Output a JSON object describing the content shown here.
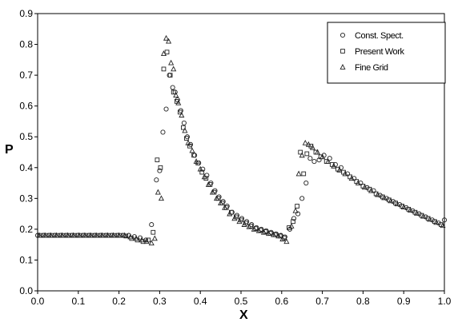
{
  "chart_data": {
    "type": "scatter",
    "title": "",
    "xlabel": "X",
    "ylabel": "P",
    "xlim": [
      0.0,
      1.0
    ],
    "ylim": [
      0.0,
      0.9
    ],
    "x_ticks": [
      "0.0",
      "0.1",
      "0.2",
      "0.3",
      "0.4",
      "0.5",
      "0.6",
      "0.7",
      "0.8",
      "0.9",
      "1.0"
    ],
    "y_ticks": [
      "0.0",
      "0.1",
      "0.2",
      "0.3",
      "0.4",
      "0.5",
      "0.6",
      "0.7",
      "0.8",
      "0.9"
    ],
    "grid": false,
    "legend_position": "top-right",
    "series": [
      {
        "name": "Const. Spect.",
        "marker": "circle",
        "points": [
          [
            0.0,
            0.18
          ],
          [
            0.014,
            0.18
          ],
          [
            0.028,
            0.18
          ],
          [
            0.042,
            0.18
          ],
          [
            0.056,
            0.18
          ],
          [
            0.07,
            0.18
          ],
          [
            0.084,
            0.18
          ],
          [
            0.098,
            0.18
          ],
          [
            0.112,
            0.18
          ],
          [
            0.126,
            0.18
          ],
          [
            0.14,
            0.18
          ],
          [
            0.154,
            0.18
          ],
          [
            0.168,
            0.18
          ],
          [
            0.182,
            0.18
          ],
          [
            0.196,
            0.18
          ],
          [
            0.21,
            0.18
          ],
          [
            0.224,
            0.18
          ],
          [
            0.238,
            0.176
          ],
          [
            0.252,
            0.172
          ],
          [
            0.266,
            0.165
          ],
          [
            0.28,
            0.215
          ],
          [
            0.292,
            0.36
          ],
          [
            0.3,
            0.39
          ],
          [
            0.308,
            0.515
          ],
          [
            0.316,
            0.59
          ],
          [
            0.324,
            0.7
          ],
          [
            0.332,
            0.66
          ],
          [
            0.338,
            0.645
          ],
          [
            0.344,
            0.62
          ],
          [
            0.352,
            0.585
          ],
          [
            0.36,
            0.545
          ],
          [
            0.368,
            0.5
          ],
          [
            0.376,
            0.475
          ],
          [
            0.386,
            0.44
          ],
          [
            0.396,
            0.415
          ],
          [
            0.406,
            0.395
          ],
          [
            0.416,
            0.375
          ],
          [
            0.426,
            0.35
          ],
          [
            0.436,
            0.325
          ],
          [
            0.446,
            0.305
          ],
          [
            0.456,
            0.29
          ],
          [
            0.466,
            0.275
          ],
          [
            0.478,
            0.255
          ],
          [
            0.49,
            0.245
          ],
          [
            0.502,
            0.235
          ],
          [
            0.514,
            0.225
          ],
          [
            0.526,
            0.215
          ],
          [
            0.538,
            0.205
          ],
          [
            0.55,
            0.2
          ],
          [
            0.562,
            0.195
          ],
          [
            0.574,
            0.19
          ],
          [
            0.586,
            0.185
          ],
          [
            0.598,
            0.18
          ],
          [
            0.608,
            0.175
          ],
          [
            0.62,
            0.2
          ],
          [
            0.63,
            0.235
          ],
          [
            0.64,
            0.25
          ],
          [
            0.65,
            0.3
          ],
          [
            0.66,
            0.35
          ],
          [
            0.67,
            0.43
          ],
          [
            0.68,
            0.42
          ],
          [
            0.692,
            0.425
          ],
          [
            0.704,
            0.44
          ],
          [
            0.718,
            0.43
          ],
          [
            0.732,
            0.41
          ],
          [
            0.746,
            0.4
          ],
          [
            0.762,
            0.38
          ],
          [
            0.778,
            0.365
          ],
          [
            0.794,
            0.35
          ],
          [
            0.81,
            0.335
          ],
          [
            0.826,
            0.325
          ],
          [
            0.842,
            0.31
          ],
          [
            0.858,
            0.3
          ],
          [
            0.874,
            0.29
          ],
          [
            0.89,
            0.28
          ],
          [
            0.906,
            0.27
          ],
          [
            0.922,
            0.26
          ],
          [
            0.938,
            0.25
          ],
          [
            0.954,
            0.24
          ],
          [
            0.97,
            0.23
          ],
          [
            0.986,
            0.22
          ],
          [
            1.0,
            0.23
          ]
        ]
      },
      {
        "name": "Present Work",
        "marker": "square",
        "points": [
          [
            0.007,
            0.18
          ],
          [
            0.021,
            0.18
          ],
          [
            0.035,
            0.18
          ],
          [
            0.049,
            0.18
          ],
          [
            0.063,
            0.18
          ],
          [
            0.077,
            0.18
          ],
          [
            0.091,
            0.18
          ],
          [
            0.105,
            0.18
          ],
          [
            0.119,
            0.18
          ],
          [
            0.133,
            0.18
          ],
          [
            0.147,
            0.18
          ],
          [
            0.161,
            0.18
          ],
          [
            0.175,
            0.18
          ],
          [
            0.189,
            0.18
          ],
          [
            0.203,
            0.18
          ],
          [
            0.217,
            0.178
          ],
          [
            0.231,
            0.17
          ],
          [
            0.245,
            0.165
          ],
          [
            0.259,
            0.16
          ],
          [
            0.272,
            0.165
          ],
          [
            0.284,
            0.19
          ],
          [
            0.294,
            0.425
          ],
          [
            0.302,
            0.4
          ],
          [
            0.31,
            0.72
          ],
          [
            0.318,
            0.775
          ],
          [
            0.326,
            0.7
          ],
          [
            0.334,
            0.645
          ],
          [
            0.342,
            0.615
          ],
          [
            0.35,
            0.58
          ],
          [
            0.358,
            0.53
          ],
          [
            0.366,
            0.495
          ],
          [
            0.374,
            0.47
          ],
          [
            0.384,
            0.44
          ],
          [
            0.394,
            0.415
          ],
          [
            0.404,
            0.385
          ],
          [
            0.414,
            0.365
          ],
          [
            0.424,
            0.345
          ],
          [
            0.434,
            0.32
          ],
          [
            0.444,
            0.3
          ],
          [
            0.454,
            0.285
          ],
          [
            0.464,
            0.27
          ],
          [
            0.476,
            0.255
          ],
          [
            0.488,
            0.24
          ],
          [
            0.5,
            0.23
          ],
          [
            0.512,
            0.22
          ],
          [
            0.524,
            0.21
          ],
          [
            0.536,
            0.202
          ],
          [
            0.548,
            0.197
          ],
          [
            0.56,
            0.192
          ],
          [
            0.572,
            0.187
          ],
          [
            0.584,
            0.182
          ],
          [
            0.596,
            0.178
          ],
          [
            0.606,
            0.172
          ],
          [
            0.618,
            0.205
          ],
          [
            0.628,
            0.225
          ],
          [
            0.638,
            0.275
          ],
          [
            0.646,
            0.45
          ],
          [
            0.654,
            0.38
          ],
          [
            0.662,
            0.445
          ],
          [
            0.672,
            0.47
          ],
          [
            0.684,
            0.45
          ],
          [
            0.696,
            0.435
          ],
          [
            0.71,
            0.42
          ],
          [
            0.724,
            0.41
          ],
          [
            0.738,
            0.395
          ],
          [
            0.752,
            0.385
          ],
          [
            0.768,
            0.37
          ],
          [
            0.784,
            0.355
          ],
          [
            0.8,
            0.34
          ],
          [
            0.816,
            0.33
          ],
          [
            0.832,
            0.315
          ],
          [
            0.848,
            0.305
          ],
          [
            0.864,
            0.295
          ],
          [
            0.88,
            0.285
          ],
          [
            0.896,
            0.275
          ],
          [
            0.912,
            0.265
          ],
          [
            0.928,
            0.255
          ],
          [
            0.944,
            0.245
          ],
          [
            0.96,
            0.235
          ],
          [
            0.976,
            0.225
          ],
          [
            0.992,
            0.215
          ]
        ]
      },
      {
        "name": "Fine Grid",
        "marker": "triangle",
        "points": [
          [
            0.004,
            0.18
          ],
          [
            0.018,
            0.18
          ],
          [
            0.032,
            0.18
          ],
          [
            0.046,
            0.18
          ],
          [
            0.06,
            0.18
          ],
          [
            0.074,
            0.18
          ],
          [
            0.088,
            0.18
          ],
          [
            0.102,
            0.18
          ],
          [
            0.116,
            0.18
          ],
          [
            0.13,
            0.18
          ],
          [
            0.144,
            0.18
          ],
          [
            0.158,
            0.18
          ],
          [
            0.172,
            0.18
          ],
          [
            0.186,
            0.18
          ],
          [
            0.2,
            0.18
          ],
          [
            0.214,
            0.18
          ],
          [
            0.228,
            0.175
          ],
          [
            0.242,
            0.17
          ],
          [
            0.256,
            0.165
          ],
          [
            0.268,
            0.16
          ],
          [
            0.28,
            0.155
          ],
          [
            0.288,
            0.17
          ],
          [
            0.296,
            0.32
          ],
          [
            0.304,
            0.3
          ],
          [
            0.31,
            0.77
          ],
          [
            0.316,
            0.82
          ],
          [
            0.322,
            0.81
          ],
          [
            0.328,
            0.74
          ],
          [
            0.334,
            0.72
          ],
          [
            0.34,
            0.635
          ],
          [
            0.346,
            0.61
          ],
          [
            0.354,
            0.57
          ],
          [
            0.362,
            0.52
          ],
          [
            0.37,
            0.48
          ],
          [
            0.38,
            0.455
          ],
          [
            0.39,
            0.42
          ],
          [
            0.4,
            0.395
          ],
          [
            0.41,
            0.37
          ],
          [
            0.42,
            0.345
          ],
          [
            0.43,
            0.32
          ],
          [
            0.44,
            0.3
          ],
          [
            0.45,
            0.285
          ],
          [
            0.46,
            0.27
          ],
          [
            0.472,
            0.25
          ],
          [
            0.484,
            0.235
          ],
          [
            0.496,
            0.225
          ],
          [
            0.508,
            0.215
          ],
          [
            0.52,
            0.208
          ],
          [
            0.532,
            0.2
          ],
          [
            0.544,
            0.195
          ],
          [
            0.556,
            0.19
          ],
          [
            0.568,
            0.186
          ],
          [
            0.58,
            0.182
          ],
          [
            0.592,
            0.178
          ],
          [
            0.602,
            0.168
          ],
          [
            0.612,
            0.16
          ],
          [
            0.624,
            0.21
          ],
          [
            0.634,
            0.26
          ],
          [
            0.642,
            0.38
          ],
          [
            0.65,
            0.44
          ],
          [
            0.658,
            0.48
          ],
          [
            0.666,
            0.475
          ],
          [
            0.676,
            0.465
          ],
          [
            0.688,
            0.45
          ],
          [
            0.7,
            0.435
          ],
          [
            0.714,
            0.42
          ],
          [
            0.728,
            0.405
          ],
          [
            0.742,
            0.392
          ],
          [
            0.756,
            0.38
          ],
          [
            0.772,
            0.365
          ],
          [
            0.788,
            0.35
          ],
          [
            0.804,
            0.336
          ],
          [
            0.82,
            0.325
          ],
          [
            0.836,
            0.312
          ],
          [
            0.852,
            0.302
          ],
          [
            0.868,
            0.292
          ],
          [
            0.884,
            0.282
          ],
          [
            0.9,
            0.272
          ],
          [
            0.916,
            0.262
          ],
          [
            0.932,
            0.252
          ],
          [
            0.948,
            0.242
          ],
          [
            0.964,
            0.232
          ],
          [
            0.98,
            0.222
          ],
          [
            0.996,
            0.212
          ]
        ]
      }
    ]
  }
}
